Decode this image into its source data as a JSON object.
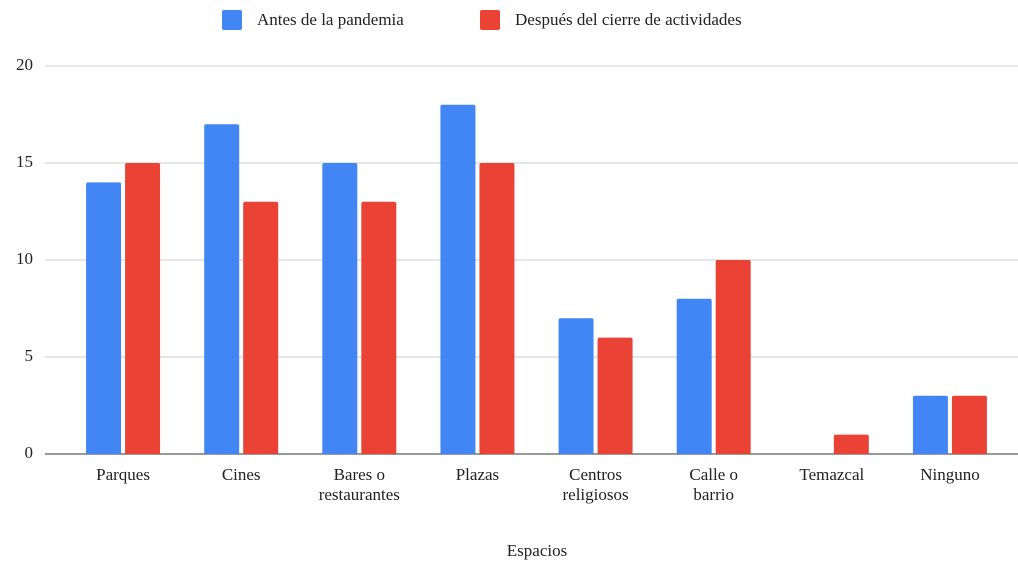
{
  "chart_data": {
    "type": "bar",
    "x_label": "Espacios",
    "categories": [
      "Parques",
      "Cines",
      "Bares o\nrestaurantes",
      "Plazas",
      "Centros\nreligiosos",
      "Calle o\nbarrio",
      "Temazcal",
      "Ninguno"
    ],
    "series": [
      {
        "name": "Antes de la pandemia",
        "color": "#4285f4",
        "values": [
          14,
          17,
          15,
          18,
          7,
          8,
          0,
          3
        ]
      },
      {
        "name": "Después del cierre de actividades",
        "color": "#ea4335",
        "values": [
          15,
          13,
          13,
          15,
          6,
          10,
          1,
          3
        ]
      }
    ],
    "ylim": [
      0,
      20
    ],
    "yticks": [
      0,
      5,
      10,
      15,
      20
    ],
    "grid": true,
    "legend": "top"
  }
}
